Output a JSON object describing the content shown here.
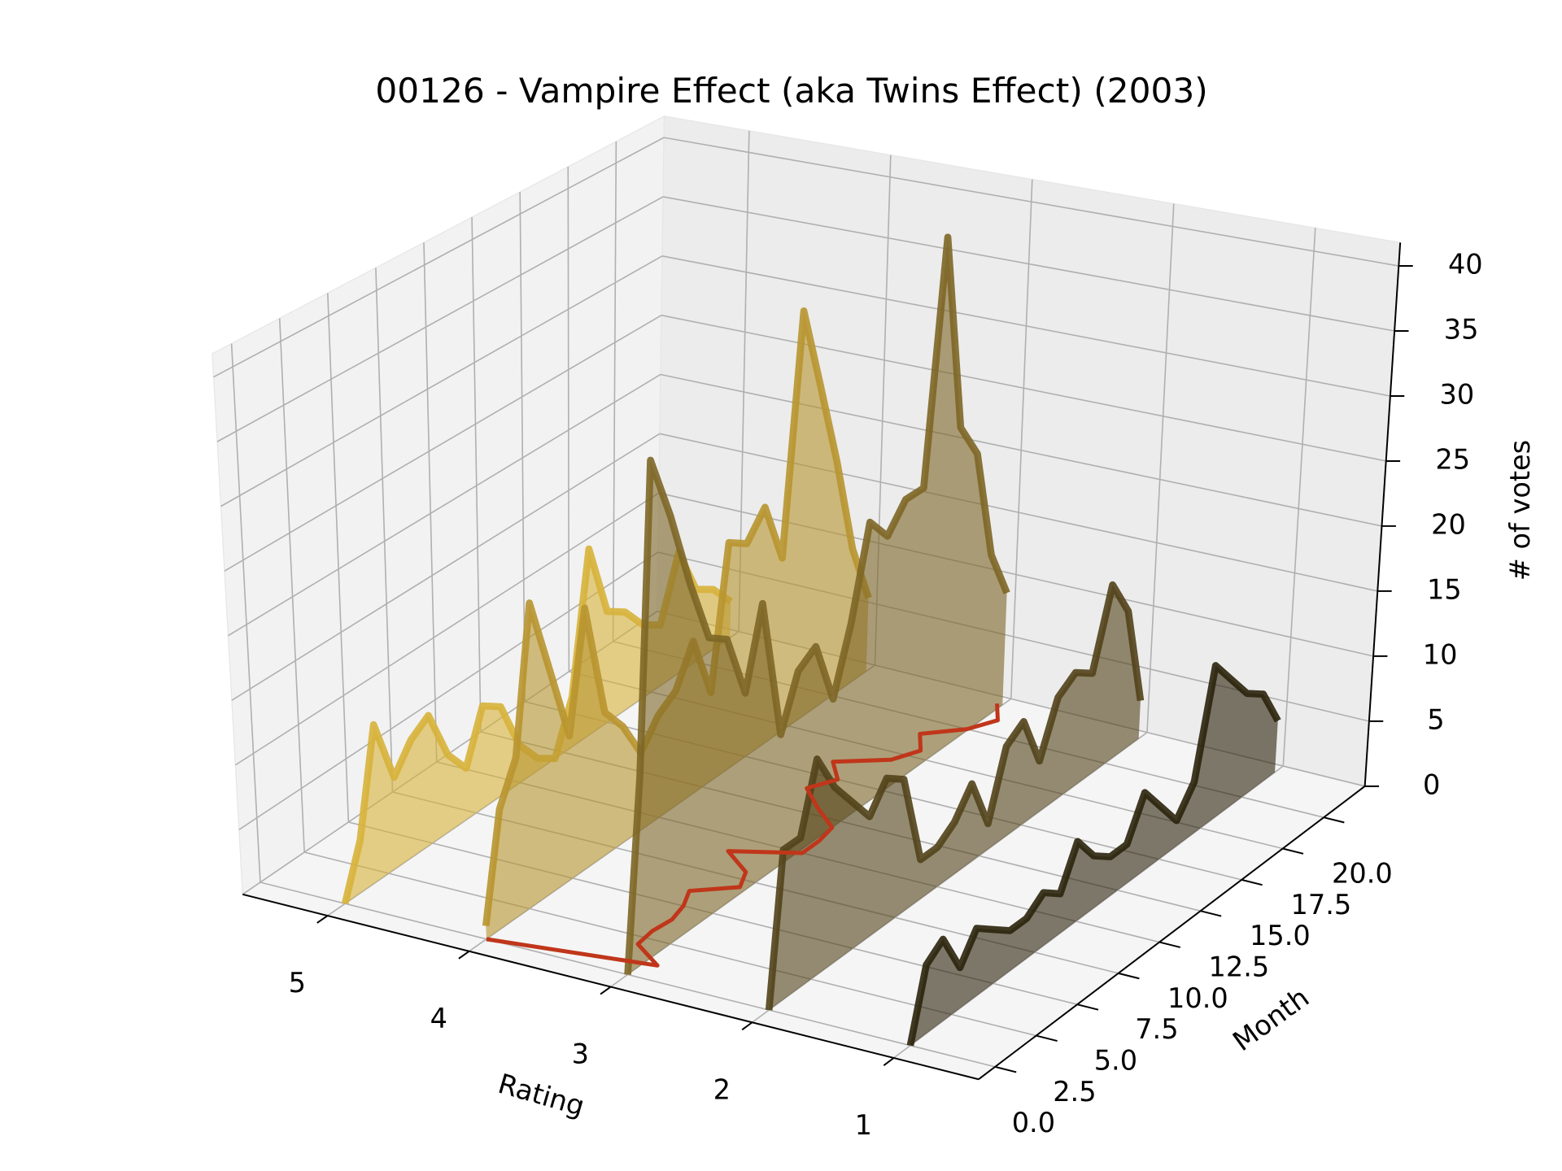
{
  "chart_data": {
    "type": "line3d",
    "title": "00126 - Vampire Effect (aka Twins Effect) (2003)",
    "xlabel": "Rating",
    "ylabel": "Month",
    "zlabel": "# of votes",
    "xlim": [
      0.4,
      5.6
    ],
    "xticks": [
      1,
      2,
      3,
      4,
      5
    ],
    "ylim": [
      -1,
      22.5
    ],
    "yticks": [
      {
        "value": 0,
        "label": "0.0"
      },
      {
        "value": 2.5,
        "label": "2.5"
      },
      {
        "value": 5,
        "label": "5.0"
      },
      {
        "value": 7.5,
        "label": "7.5"
      },
      {
        "value": 10,
        "label": "10.0"
      },
      {
        "value": 12.5,
        "label": "12.5"
      },
      {
        "value": 15,
        "label": "15.0"
      },
      {
        "value": 17.5,
        "label": "17.5"
      },
      {
        "value": 20,
        "label": "20.0"
      }
    ],
    "zlim": [
      0,
      41.8
    ],
    "zticks": [
      0,
      5,
      10,
      15,
      20,
      25,
      30,
      35,
      40
    ],
    "grid": true,
    "months": [
      0,
      1,
      2,
      3,
      4,
      5,
      6,
      7,
      8,
      9,
      10,
      11,
      12,
      13,
      14,
      15,
      16,
      17,
      18,
      19,
      20,
      21,
      22
    ],
    "series": [
      {
        "rating": 5,
        "color": "#d7b33a",
        "values": [
          0,
          4,
          12,
          7,
          9,
          10,
          6,
          4,
          8,
          7,
          3,
          1,
          0,
          4,
          15,
          9,
          8,
          6,
          5,
          10,
          6,
          5,
          3
        ]
      },
      {
        "rating": 4,
        "color": "#b8952f",
        "values": [
          1,
          9,
          12,
          23,
          17,
          11,
          20,
          11,
          9,
          6,
          8,
          9,
          12,
          7,
          18,
          17,
          19,
          14,
          33,
          26,
          19,
          11,
          6
        ]
      },
      {
        "rating": 3,
        "color": "#7d6626",
        "values": [
          0,
          14,
          37,
          32,
          26,
          21,
          20,
          15,
          21,
          10,
          14,
          15,
          10,
          15,
          22,
          20,
          22,
          22,
          41,
          25,
          22,
          13,
          9
        ]
      },
      {
        "rating": 2,
        "color": "#524219",
        "values": [
          0,
          11,
          11,
          16,
          13,
          11,
          9,
          11,
          10,
          3,
          3,
          4,
          6,
          2,
          7,
          8,
          4,
          8,
          9,
          8,
          14,
          11,
          3
        ]
      },
      {
        "rating": 1,
        "color": "#2b230c",
        "values": [
          0,
          5,
          6,
          3,
          5,
          4,
          3,
          3,
          4,
          3,
          6,
          4,
          3,
          3,
          6,
          4,
          2,
          4,
          12,
          10,
          8,
          7,
          4
        ]
      }
    ],
    "mean_line": {
      "color": "#c0361a",
      "values": [
        4.0,
        2.91,
        3.17,
        3.19,
        3.17,
        3.21,
        3.29,
        3.05,
        3.13,
        3.38,
        2.97,
        2.97,
        3.0,
        3.23,
        3.43,
        3.33,
        3.49,
        3.19,
        3.1,
        3.23,
        3.01,
        2.91,
        3.04
      ]
    }
  }
}
